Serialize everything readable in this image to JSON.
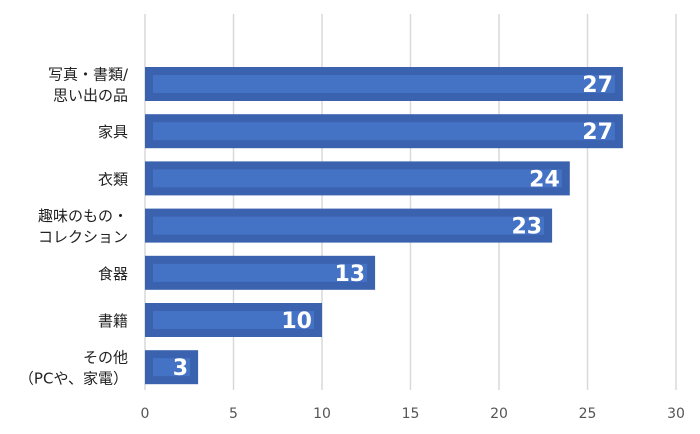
{
  "chart_data": {
    "type": "bar",
    "orientation": "horizontal",
    "categories": [
      [
        "写真・書類/",
        "思い出の品"
      ],
      [
        "家具"
      ],
      [
        "衣類"
      ],
      [
        "趣味のもの・",
        "コレクション"
      ],
      [
        "食器"
      ],
      [
        "書籍"
      ],
      [
        "その他",
        "（PCや、家電）"
      ]
    ],
    "values": [
      27,
      27,
      24,
      23,
      13,
      10,
      3
    ],
    "xlim": [
      0,
      30
    ],
    "xticks": [
      0,
      5,
      10,
      15,
      20,
      25,
      30
    ],
    "grid": true,
    "data_labels": true,
    "colors": {
      "bar": "#4472c4",
      "bar_border": "#3a62ae",
      "grid": "#d9d9d9"
    }
  }
}
